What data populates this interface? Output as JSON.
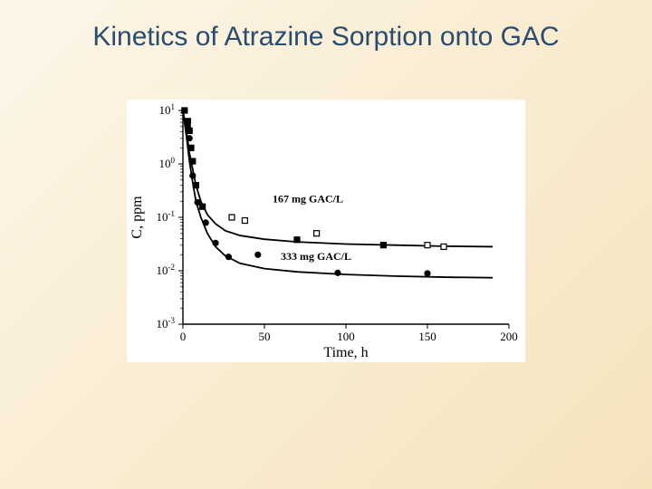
{
  "title": "Kinetics of Atrazine Sorption onto GAC",
  "background_gradient": [
    "#fdf6e8",
    "#f9ecd2",
    "#f5e3bc"
  ],
  "chart": {
    "type": "scatter-line-semilogy",
    "background_color": "#ffffff",
    "xlabel": "Time, h",
    "ylabel": "C, ppm",
    "label_fontsize": 16,
    "tick_fontsize": 13,
    "xlim": [
      0,
      200
    ],
    "ylim_log10": [
      -3,
      1
    ],
    "xtick_step": 50,
    "ytick_exponents": [
      -3,
      -2,
      -1,
      0,
      1
    ],
    "axis_color": "#000000",
    "tick_len": 5,
    "minor_tick_len": 3,
    "line_width": 1.8,
    "series": [
      {
        "label": "167 mg GAC/L",
        "label_xy": [
          55,
          -0.72
        ],
        "marker_shape": "square",
        "marker_fill": "mixed",
        "marker_colors_fill": [
          "#000000",
          "#ffffff"
        ],
        "marker_stroke": "#000000",
        "marker_size": 6,
        "line_color": "#000000",
        "curve": [
          [
            0,
            1.0
          ],
          [
            2,
            0.65
          ],
          [
            4,
            0.2
          ],
          [
            6,
            -0.1
          ],
          [
            8,
            -0.4
          ],
          [
            11,
            -0.7
          ],
          [
            15,
            -0.95
          ],
          [
            20,
            -1.12
          ],
          [
            26,
            -1.25
          ],
          [
            35,
            -1.34
          ],
          [
            50,
            -1.41
          ],
          [
            70,
            -1.46
          ],
          [
            100,
            -1.5
          ],
          [
            130,
            -1.52
          ],
          [
            160,
            -1.54
          ],
          [
            190,
            -1.55
          ]
        ],
        "points": [
          {
            "x": 1,
            "log10y": 1.0,
            "fill": "#000000"
          },
          {
            "x": 3,
            "log10y": 0.8,
            "fill": "#000000"
          },
          {
            "x": 4,
            "log10y": 0.62,
            "fill": "#000000"
          },
          {
            "x": 5,
            "log10y": 0.3,
            "fill": "#000000"
          },
          {
            "x": 6,
            "log10y": 0.05,
            "fill": "#000000"
          },
          {
            "x": 8,
            "log10y": -0.4,
            "fill": "#000000"
          },
          {
            "x": 12,
            "log10y": -0.8,
            "fill": "#000000"
          },
          {
            "x": 30,
            "log10y": -1.0,
            "fill": "#ffffff"
          },
          {
            "x": 38,
            "log10y": -1.06,
            "fill": "#ffffff"
          },
          {
            "x": 70,
            "log10y": -1.42,
            "fill": "#000000"
          },
          {
            "x": 82,
            "log10y": -1.3,
            "fill": "#ffffff"
          },
          {
            "x": 123,
            "log10y": -1.52,
            "fill": "#000000"
          },
          {
            "x": 150,
            "log10y": -1.52,
            "fill": "#ffffff"
          },
          {
            "x": 160,
            "log10y": -1.55,
            "fill": "#ffffff"
          }
        ]
      },
      {
        "label": "333 mg GAC/L",
        "label_xy": [
          60,
          -1.8
        ],
        "marker_shape": "circle",
        "marker_fill": "solid",
        "marker_colors_fill": [
          "#000000"
        ],
        "marker_stroke": "#000000",
        "marker_size": 6,
        "line_color": "#000000",
        "curve": [
          [
            0,
            1.0
          ],
          [
            2,
            0.55
          ],
          [
            4,
            0.05
          ],
          [
            6,
            -0.35
          ],
          [
            8,
            -0.7
          ],
          [
            11,
            -1.0
          ],
          [
            15,
            -1.3
          ],
          [
            20,
            -1.55
          ],
          [
            26,
            -1.72
          ],
          [
            35,
            -1.86
          ],
          [
            50,
            -1.96
          ],
          [
            70,
            -2.02
          ],
          [
            100,
            -2.07
          ],
          [
            130,
            -2.1
          ],
          [
            160,
            -2.12
          ],
          [
            190,
            -2.13
          ]
        ],
        "points": [
          {
            "x": 1,
            "log10y": 1.0,
            "fill": "#000000"
          },
          {
            "x": 3,
            "log10y": 0.7,
            "fill": "#000000"
          },
          {
            "x": 4,
            "log10y": 0.48,
            "fill": "#000000"
          },
          {
            "x": 6,
            "log10y": -0.22,
            "fill": "#000000"
          },
          {
            "x": 9,
            "log10y": -0.72,
            "fill": "#000000"
          },
          {
            "x": 14,
            "log10y": -1.1,
            "fill": "#000000"
          },
          {
            "x": 20,
            "log10y": -1.48,
            "fill": "#000000"
          },
          {
            "x": 28,
            "log10y": -1.74,
            "fill": "#000000"
          },
          {
            "x": 46,
            "log10y": -1.7,
            "fill": "#000000"
          },
          {
            "x": 95,
            "log10y": -2.04,
            "fill": "#000000"
          },
          {
            "x": 150,
            "log10y": -2.05,
            "fill": "#000000"
          }
        ]
      }
    ]
  }
}
